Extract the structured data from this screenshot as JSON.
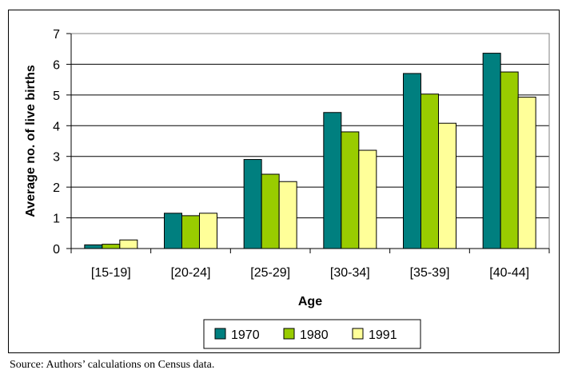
{
  "chart_data": {
    "type": "bar",
    "title": "",
    "xlabel": "Age",
    "ylabel": "Average no. of live births",
    "ylim": [
      0,
      7
    ],
    "yticks": [
      "0",
      "1",
      "2",
      "3",
      "4",
      "5",
      "6",
      "7"
    ],
    "grid": "horizontal",
    "legend_position": "bottom",
    "categories": [
      "[15-19]",
      "[20-24]",
      "[25-29]",
      "[30-34]",
      "[35-39]",
      "[40-44]"
    ],
    "series": [
      {
        "name": "1970",
        "color": "#007f7f",
        "values": [
          0.12,
          1.15,
          2.9,
          4.43,
          5.7,
          6.36
        ]
      },
      {
        "name": "1980",
        "color": "#99cc00",
        "values": [
          0.14,
          1.07,
          2.42,
          3.8,
          5.03,
          5.75
        ]
      },
      {
        "name": "1991",
        "color": "#ffff99",
        "values": [
          0.28,
          1.15,
          2.18,
          3.2,
          4.08,
          4.93
        ]
      }
    ]
  },
  "source_note": "Source: Authors’ calculations on Census data."
}
